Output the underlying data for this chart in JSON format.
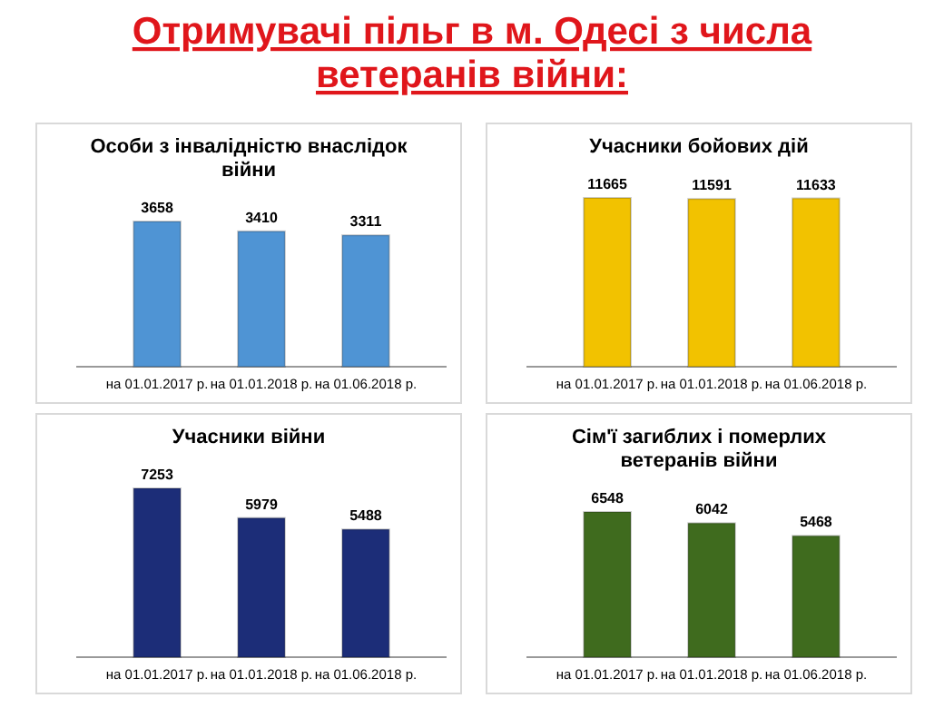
{
  "chart_data": [
    {
      "type": "other",
      "title": "Отримувачі пільг в м. Одесі з числа ветеранів війни:"
    },
    {
      "type": "bar",
      "title": "Особи з інвалідністю внаслідок війни",
      "categories": [
        "на 01.01.2017 р.",
        "на 01.01.2018 р.",
        "на 01.06.2018 р."
      ],
      "values": [
        3658,
        3410,
        3311
      ],
      "color": "#4f94d4",
      "data_labels": true,
      "tick_labels": "x"
    },
    {
      "type": "bar",
      "title": "Учасники бойових дій",
      "categories": [
        "на 01.01.2017 р.",
        "на 01.01.2018 р.",
        "на 01.06.2018 р."
      ],
      "values": [
        11665,
        11591,
        11633
      ],
      "color": "#f2c200",
      "data_labels": true,
      "tick_labels": "x"
    },
    {
      "type": "bar",
      "title": "Учасники війни",
      "categories": [
        "на 01.01.2017 р.",
        "на 01.01.2018 р.",
        "на 01.06.2018 р."
      ],
      "values": [
        7253,
        5979,
        5488
      ],
      "color": "#1c2d78",
      "data_labels": true,
      "tick_labels": "x"
    },
    {
      "type": "bar",
      "title": "Сім'ї загиблих і померлих ветеранів війни",
      "categories": [
        "на 01.01.2017 р.",
        "на 01.01.2018 р.",
        "на 01.06.2018 р."
      ],
      "values": [
        6548,
        6042,
        5468
      ],
      "color": "#3f6b1e",
      "data_labels": true,
      "tick_labels": "x"
    }
  ]
}
